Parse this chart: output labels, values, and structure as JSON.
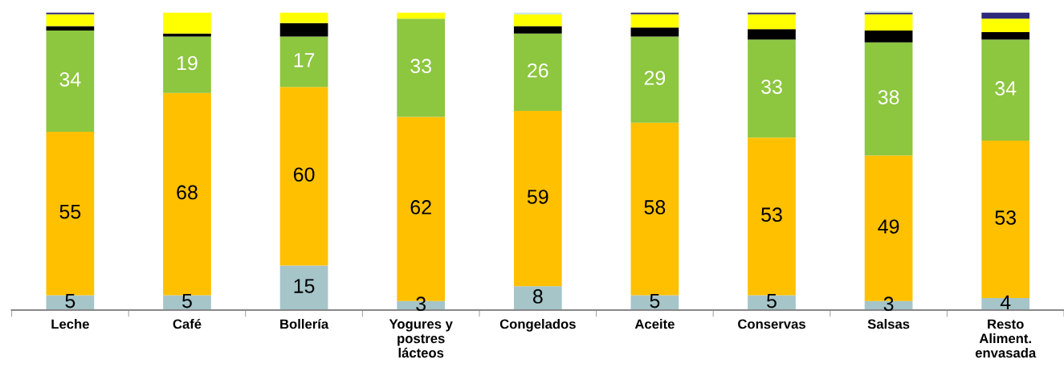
{
  "chart_data": {
    "type": "bar",
    "stacked": true,
    "categories": [
      "Leche",
      "Café",
      "Bollería",
      "Yogures y\npostres\nlácteos",
      "Congelados",
      "Aceite",
      "Conservas",
      "Salsas",
      "Resto\nAliment.\nenvasada"
    ],
    "series": [
      {
        "color": "#a5c5c9",
        "values": [
          5,
          5,
          15,
          3,
          8,
          5,
          5,
          3,
          4
        ],
        "value_labels": [
          "5",
          "5",
          "15",
          "3",
          "8",
          "5",
          "5",
          "3",
          "4"
        ]
      },
      {
        "color": "#ffc000",
        "values": [
          55,
          68,
          60,
          62,
          59,
          58,
          53,
          49,
          53
        ],
        "value_labels": [
          "55",
          "68",
          "60",
          "62",
          "59",
          "58",
          "53",
          "49",
          "53"
        ]
      },
      {
        "color": "#8dc63f",
        "values": [
          34,
          19,
          17,
          33,
          26,
          29,
          33,
          38,
          34
        ],
        "value_labels": [
          "34",
          "19",
          "17",
          "33",
          "26",
          "29",
          "33",
          "38",
          "34"
        ]
      },
      {
        "color": "#000000",
        "values": [
          1.5,
          1,
          4.5,
          0,
          2.5,
          3,
          3.5,
          4,
          2.5
        ]
      },
      {
        "color": "#ffff00",
        "values": [
          4,
          7,
          3.5,
          2,
          4,
          4.5,
          5,
          5.5,
          4.5
        ]
      },
      {
        "color": "#2e2a7a",
        "values": [
          0.5,
          0,
          0,
          0,
          0,
          0.5,
          0.5,
          0.5,
          2
        ]
      },
      {
        "color": "#c5e3ea",
        "values": [
          0,
          0,
          0,
          0,
          0.5,
          0,
          0,
          0.5,
          0
        ]
      }
    ]
  }
}
